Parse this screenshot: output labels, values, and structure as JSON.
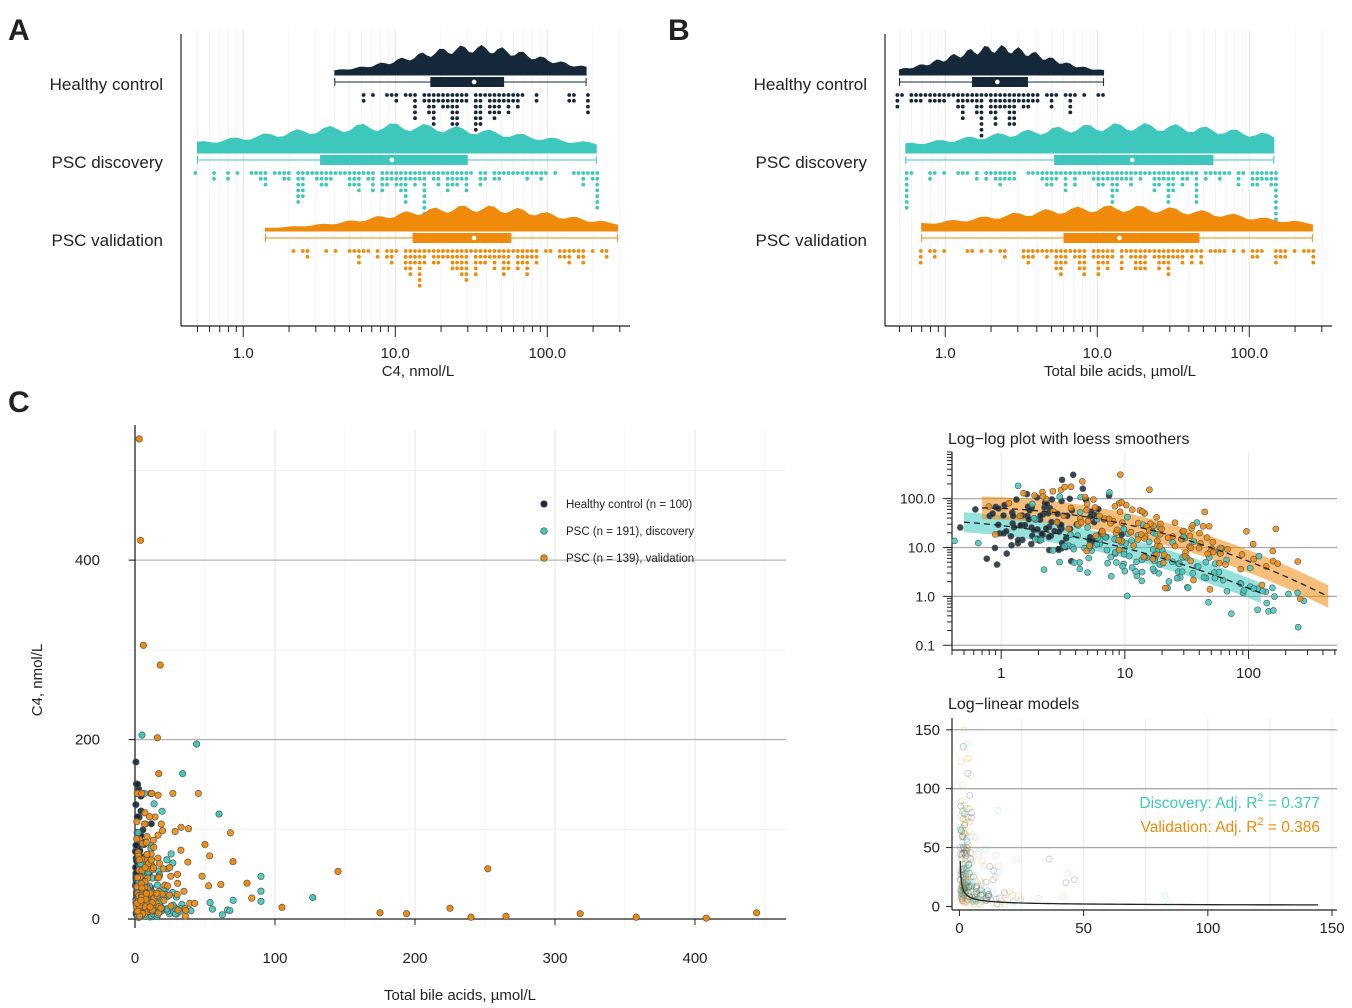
{
  "panels": {
    "a": "A",
    "b": "B",
    "c": "C"
  },
  "colors": {
    "hc": "#14283a",
    "disc": "#3ec8bd",
    "val": "#ef8a0b"
  },
  "chart_data": [
    {
      "id": "A",
      "type": "raincloud",
      "xscale": "log",
      "xlim": [
        0.42,
        350
      ],
      "xlabel": "C4, nmol/L",
      "ticks": [
        "1.0",
        "10.0",
        "100.0"
      ],
      "groups": [
        {
          "name": "Healthy control",
          "min": 4.0,
          "q1": 17,
          "median": 33,
          "q3": 52,
          "max": 180
        },
        {
          "name": "PSC discovery",
          "min": 0.5,
          "q1": 3.2,
          "median": 9.5,
          "q3": 30,
          "max": 210
        },
        {
          "name": "PSC validation",
          "min": 1.4,
          "q1": 13,
          "median": 33,
          "q3": 58,
          "max": 290
        }
      ]
    },
    {
      "id": "B",
      "type": "raincloud",
      "xscale": "log",
      "xlim": [
        0.42,
        350
      ],
      "xlabel": "Total bile acids, µmol/L",
      "ticks": [
        "1.0",
        "10.0",
        "100.0"
      ],
      "groups": [
        {
          "name": "Healthy control",
          "min": 0.5,
          "q1": 1.5,
          "median": 2.2,
          "q3": 3.5,
          "max": 11
        },
        {
          "name": "PSC discovery",
          "min": 0.55,
          "q1": 5.2,
          "median": 17,
          "q3": 58,
          "max": 145
        },
        {
          "name": "PSC validation",
          "min": 0.7,
          "q1": 6,
          "median": 14,
          "q3": 47,
          "max": 260
        }
      ]
    },
    {
      "id": "C-main",
      "type": "scatter",
      "xlabel": "Total bile acids, µmol/L",
      "ylabel": "C4, nmol/L",
      "xlim": [
        -5,
        465
      ],
      "ylim": [
        -10,
        545
      ],
      "xticks": [
        0,
        100,
        200,
        300,
        400
      ],
      "yticks": [
        0,
        200,
        400
      ],
      "legend_position": "top-right",
      "series": [
        {
          "name": "Healthy control (n = 100)",
          "key": "hc"
        },
        {
          "name": "PSC (n = 191), discovery",
          "key": "disc"
        },
        {
          "name": "PSC (n = 139), validation",
          "key": "val"
        }
      ],
      "highlight_points": [
        {
          "x": 3,
          "y": 535,
          "s": "val"
        },
        {
          "x": 4,
          "y": 422,
          "s": "val"
        },
        {
          "x": 6,
          "y": 305,
          "s": "val"
        },
        {
          "x": 18,
          "y": 283,
          "s": "val"
        },
        {
          "x": 5,
          "y": 205,
          "s": "disc"
        },
        {
          "x": 44,
          "y": 195,
          "s": "disc"
        },
        {
          "x": 16,
          "y": 202,
          "s": "val"
        },
        {
          "x": 17,
          "y": 162,
          "s": "val"
        },
        {
          "x": 34,
          "y": 162,
          "s": "disc"
        },
        {
          "x": 60,
          "y": 117,
          "s": "disc"
        },
        {
          "x": 50,
          "y": 83,
          "s": "val"
        },
        {
          "x": 70,
          "y": 64,
          "s": "val"
        },
        {
          "x": 145,
          "y": 53,
          "s": "val"
        },
        {
          "x": 252,
          "y": 56,
          "s": "val"
        },
        {
          "x": 80,
          "y": 40,
          "s": "val"
        },
        {
          "x": 127,
          "y": 24,
          "s": "disc"
        },
        {
          "x": 105,
          "y": 13,
          "s": "val"
        },
        {
          "x": 175,
          "y": 7,
          "s": "val"
        },
        {
          "x": 194,
          "y": 6,
          "s": "val"
        },
        {
          "x": 225,
          "y": 12,
          "s": "val"
        },
        {
          "x": 240,
          "y": 2,
          "s": "val"
        },
        {
          "x": 265,
          "y": 3,
          "s": "val"
        },
        {
          "x": 318,
          "y": 6,
          "s": "val"
        },
        {
          "x": 358,
          "y": 2,
          "s": "val"
        },
        {
          "x": 408,
          "y": 1,
          "s": "val"
        },
        {
          "x": 444,
          "y": 7,
          "s": "val"
        }
      ]
    },
    {
      "id": "C-loglog",
      "type": "scatter",
      "title": "Log−log plot with loess smoothers",
      "xscale": "log",
      "yscale": "log",
      "xlim": [
        0.4,
        520
      ],
      "ylim": [
        0.08,
        900
      ],
      "xticks": [
        "1",
        "10",
        "100"
      ],
      "yticks": [
        "0.1",
        "1.0",
        "10.0",
        "100.0"
      ]
    },
    {
      "id": "C-loglinear",
      "type": "scatter",
      "title": "Log−linear models",
      "xlim": [
        -3,
        152
      ],
      "ylim": [
        -3,
        160
      ],
      "xticks": [
        0,
        50,
        100,
        150
      ],
      "yticks": [
        0,
        50,
        100,
        150
      ],
      "annotations": [
        {
          "key": "disc",
          "label": "Discovery: Adj.  R",
          "sup": "2",
          "value": " =  0.377"
        },
        {
          "key": "val",
          "label": "Validation: Adj.  R",
          "sup": "2",
          "value": " =  0.386"
        }
      ]
    }
  ]
}
